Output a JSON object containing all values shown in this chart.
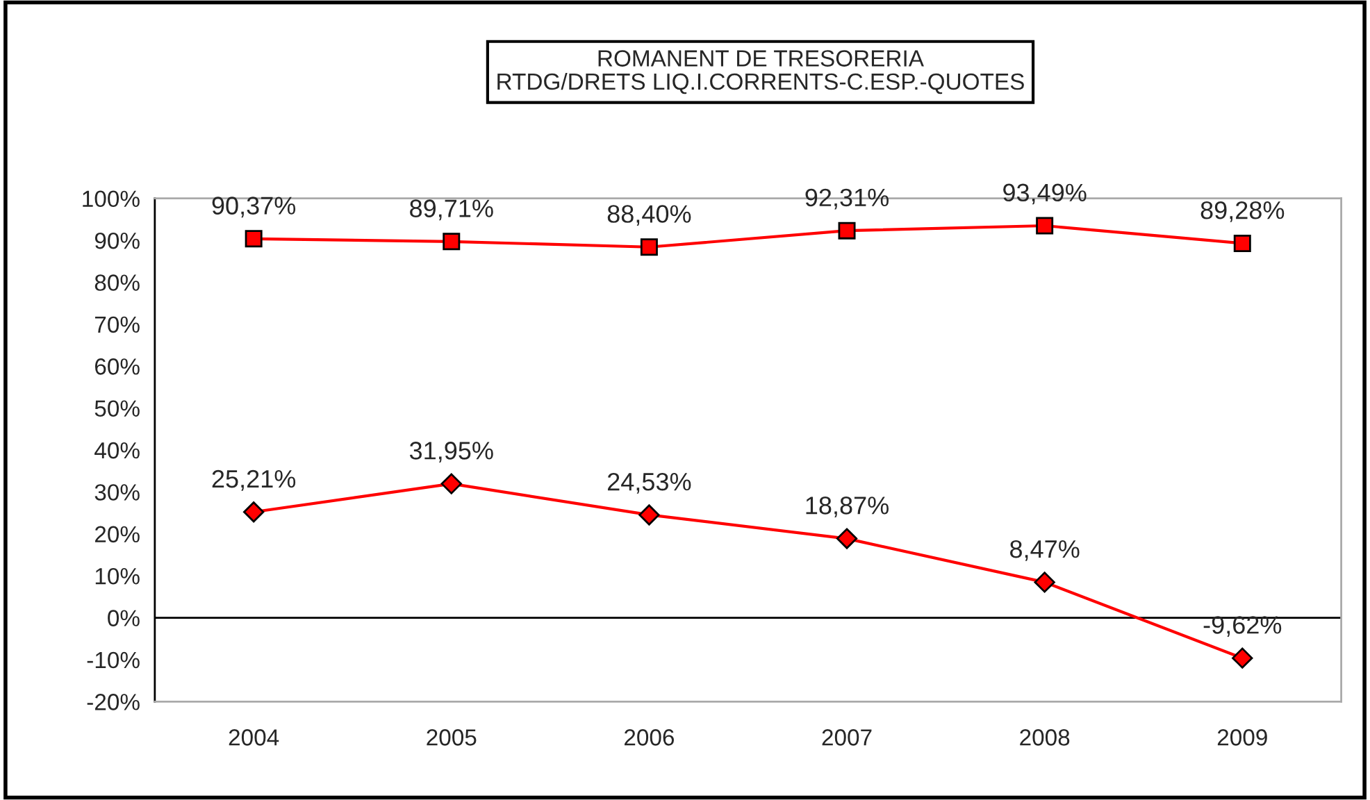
{
  "chart_data": {
    "type": "line",
    "title": "ROMANENT DE TRESORERIA\nRTDG/DRETS LIQ.I.CORRENTS-C.ESP.-QUOTES",
    "categories": [
      "2004",
      "2005",
      "2006",
      "2007",
      "2008",
      "2009"
    ],
    "series": [
      {
        "color": "#ff0000",
        "marker": "square",
        "values": [
          90.37,
          89.71,
          88.4,
          92.31,
          93.49,
          89.28
        ],
        "value_labels": [
          "90,37%",
          "89,71%",
          "88,40%",
          "92,31%",
          "93,49%",
          "89,28%"
        ]
      },
      {
        "color": "#ff0000",
        "marker": "diamond",
        "values": [
          25.21,
          31.95,
          24.53,
          18.87,
          8.47,
          -9.62
        ],
        "value_labels": [
          "25,21%",
          "31,95%",
          "24,53%",
          "18,87%",
          "8,47%",
          "-9,62%"
        ]
      }
    ],
    "ylim": [
      -20,
      100
    ],
    "yticks": [
      {
        "value": -20,
        "label": "-20%"
      },
      {
        "value": -10,
        "label": "-10%"
      },
      {
        "value": 0,
        "label": "0%"
      },
      {
        "value": 10,
        "label": "10%"
      },
      {
        "value": 20,
        "label": "20%"
      },
      {
        "value": 30,
        "label": "30%"
      },
      {
        "value": 40,
        "label": "40%"
      },
      {
        "value": 50,
        "label": "50%"
      },
      {
        "value": 60,
        "label": "60%"
      },
      {
        "value": 70,
        "label": "70%"
      },
      {
        "value": 80,
        "label": "80%"
      },
      {
        "value": 90,
        "label": "90%"
      },
      {
        "value": 100,
        "label": "100%"
      }
    ],
    "ref_lines": [
      {
        "axis": "y",
        "value": 0,
        "color": "#000000"
      }
    ],
    "grid": false,
    "legend": false
  }
}
